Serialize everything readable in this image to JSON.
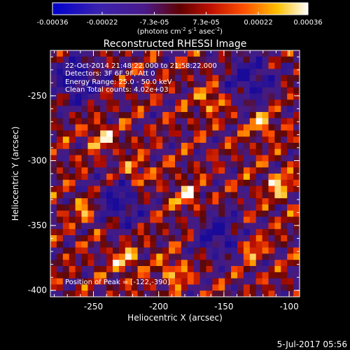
{
  "colorbar": {
    "ticks": [
      "-0.00036",
      "-0.00022",
      "-7.3e-05",
      "7.3e-05",
      "0.00022",
      "0.00036"
    ],
    "tick_values": [
      -0.00036,
      -0.00022,
      -7.3e-05,
      7.3e-05,
      0.00022,
      0.00036
    ],
    "range": [
      -0.00036,
      0.00036
    ],
    "unit_main": "(photons cm",
    "unit_exp1": "-2",
    "unit_mid": " s",
    "unit_exp2": "-1",
    "unit_end": " asec",
    "unit_exp3": "-2",
    "unit_close": ")",
    "colors": [
      "#0000cc",
      "#5020a0",
      "#4a1a8a",
      "#a01010",
      "#ff5000",
      "#ffd000",
      "#ffffff"
    ]
  },
  "annotations": {
    "time": "22-Oct-2014 21:48:22.000 to 21:58:22.000",
    "detectors": "Detectors: 3F 6F 9F, Att 0",
    "energy": "Energy Range: 25.0 - 50.0 keV",
    "algorithm": "Clean    Total counts: 4.02e+03",
    "peak": "Position of Peak = [-122,-390]"
  },
  "footer": {
    "date": "5-Jul-2017 05:56"
  },
  "chart_data": {
    "type": "heatmap",
    "title": "Reconstructed RHESSI Image",
    "xlabel": "Heliocentric X (arcsec)",
    "ylabel": "Heliocentric Y (arcsec)",
    "xlim": [
      -283,
      -92
    ],
    "ylim": [
      -405,
      -215
    ],
    "xticks": [
      -250,
      -200,
      -150,
      -100
    ],
    "xtick_labels": [
      "-250",
      "-200",
      "-150",
      "-100"
    ],
    "yticks": [
      -250,
      -300,
      -350,
      -400
    ],
    "ytick_labels": [
      "-250",
      "-300",
      "-350",
      "-400"
    ],
    "peak_position": [
      -122,
      -390
    ],
    "value_range": [
      -0.00036,
      0.00036
    ]
  }
}
